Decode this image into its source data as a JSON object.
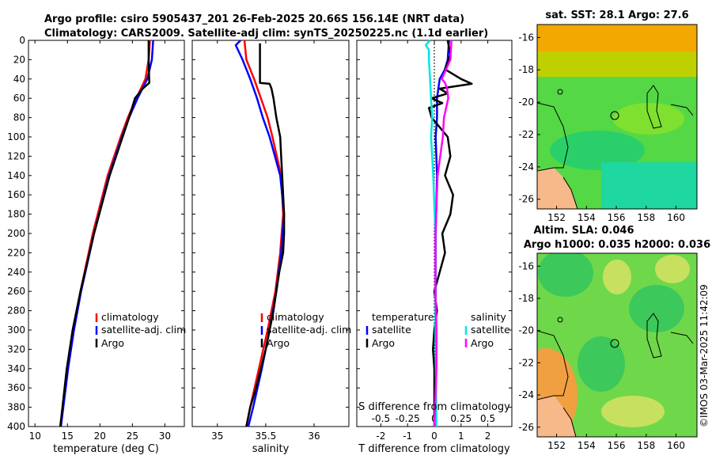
{
  "titles": {
    "line1": "Argo profile: csiro 5905437_201 26-Feb-2025 20.66S 156.14E (NRT data)",
    "line2": "Climatology: CARS2009. Satellite-adj clim: synTS_20250225.nc (1.1d earlier)"
  },
  "stamp": "©IMOS 03-Mar-2025 11:42:09",
  "colors": {
    "climatology": "#ff0000",
    "satellite": "#0000ff",
    "argo": "#000000",
    "sal_satellite": "#00e5e5",
    "sal_argo": "#ff00ff",
    "land": "#f7b98a"
  },
  "chart_data": [
    {
      "type": "line",
      "name": "temperature-profile",
      "xlabel": "temperature (deg C)",
      "ylabel": "",
      "xlim": [
        9,
        33
      ],
      "ylim": [
        400,
        0
      ],
      "xticks": [
        "10",
        "15",
        "20",
        "25",
        "30"
      ],
      "yticks": [
        "0",
        "20",
        "40",
        "60",
        "80",
        "100",
        "120",
        "140",
        "160",
        "180",
        "200",
        "220",
        "240",
        "260",
        "280",
        "300",
        "320",
        "340",
        "360",
        "380",
        "400"
      ],
      "legend": [
        "climatology",
        "satellite-adj. clim",
        "Argo"
      ],
      "series": [
        {
          "name": "climatology",
          "depth": [
            0,
            20,
            40,
            60,
            80,
            100,
            140,
            200,
            260,
            300,
            340,
            400
          ],
          "values": [
            27.7,
            27.5,
            27.0,
            25.6,
            24.3,
            23.2,
            21.2,
            18.9,
            17.0,
            15.9,
            15.0,
            13.9
          ]
        },
        {
          "name": "satellite-adj. clim",
          "depth": [
            0,
            20,
            40,
            60,
            80,
            100,
            140,
            200,
            260,
            300,
            340,
            400
          ],
          "values": [
            28.2,
            28.0,
            27.3,
            25.8,
            24.5,
            23.4,
            21.4,
            19.1,
            17.1,
            16.0,
            15.1,
            14.0
          ]
        },
        {
          "name": "Argo",
          "depth": [
            0,
            20,
            44,
            50,
            60,
            80,
            100,
            140,
            200,
            260,
            300,
            340,
            400
          ],
          "values": [
            27.5,
            27.5,
            27.6,
            26.6,
            25.4,
            24.5,
            23.5,
            21.5,
            19.1,
            17.0,
            15.8,
            14.9,
            13.9
          ]
        }
      ]
    },
    {
      "type": "line",
      "name": "salinity-profile",
      "xlabel": "salinity",
      "xlim": [
        34.74,
        36.36
      ],
      "ylim": [
        400,
        0
      ],
      "xticks": [
        "35",
        "35.5",
        "36"
      ],
      "legend": [
        "climatology",
        "satellite-adj. clim",
        "Argo"
      ],
      "series": [
        {
          "name": "climatology",
          "depth": [
            0,
            20,
            40,
            60,
            80,
            100,
            140,
            180,
            220,
            260,
            300,
            340,
            380,
            400
          ],
          "values": [
            35.28,
            35.3,
            35.38,
            35.45,
            35.52,
            35.57,
            35.66,
            35.68,
            35.65,
            35.6,
            35.52,
            35.43,
            35.34,
            35.3
          ]
        },
        {
          "name": "satellite-adj. clim",
          "depth": [
            0,
            5,
            20,
            40,
            60,
            80,
            100,
            140,
            180,
            220,
            260,
            300,
            340,
            380,
            400
          ],
          "values": [
            35.24,
            35.19,
            35.26,
            35.34,
            35.41,
            35.47,
            35.54,
            35.65,
            35.69,
            35.66,
            35.61,
            35.54,
            35.46,
            35.37,
            35.32
          ]
        },
        {
          "name": "Argo",
          "depth": [
            3,
            44,
            45,
            50,
            60,
            80,
            100,
            120,
            140,
            160,
            180,
            200,
            220,
            240,
            260,
            280,
            300,
            320,
            340,
            360,
            380,
            400
          ],
          "values": [
            35.44,
            35.44,
            35.54,
            35.56,
            35.58,
            35.61,
            35.65,
            35.66,
            35.67,
            35.68,
            35.69,
            35.69,
            35.68,
            35.64,
            35.61,
            35.58,
            35.54,
            35.5,
            35.45,
            35.4,
            35.34,
            35.3
          ]
        }
      ]
    },
    {
      "type": "line",
      "name": "difference-from-climatology",
      "xlabel": "T difference from climatology",
      "xlabel_top": "S difference from climatology",
      "xlim": [
        -2.9,
        2.9
      ],
      "ylim": [
        400,
        0
      ],
      "xticks": [
        "-2",
        "-1",
        "0",
        "1",
        "2"
      ],
      "xticks_top": [
        "-0.5",
        "-0.25",
        "0",
        "0.25",
        "0.5"
      ],
      "legend_temperature": {
        "title": "temperature",
        "items": [
          "satellite",
          "Argo"
        ]
      },
      "legend_salinity": {
        "title": "salinity",
        "items": [
          "satellite",
          "Argo"
        ]
      },
      "series": [
        {
          "name": "temperature satellite",
          "depth": [
            0,
            20,
            30,
            40,
            50,
            60,
            80,
            100,
            140,
            200,
            300,
            400
          ],
          "values": [
            0.55,
            0.5,
            0.4,
            0.2,
            0.15,
            0.1,
            0.1,
            0.05,
            0.1,
            0.05,
            0.05,
            0.05
          ]
        },
        {
          "name": "temperature Argo",
          "depth": [
            0,
            15,
            30,
            40,
            45,
            50,
            55,
            60,
            65,
            70,
            80,
            90,
            100,
            120,
            140,
            160,
            180,
            200,
            220,
            240,
            260,
            280,
            300,
            320,
            340,
            360,
            380,
            400
          ],
          "values": [
            0.5,
            0.6,
            0.4,
            1.0,
            1.4,
            0.2,
            0.5,
            -0.1,
            0.3,
            -0.2,
            -0.1,
            0.2,
            0.5,
            0.6,
            0.4,
            0.7,
            0.6,
            0.3,
            0.4,
            0.2,
            0.0,
            0.1,
            0.0,
            -0.05,
            0.0,
            0.0,
            0.0,
            0.0
          ]
        },
        {
          "name": "salinity satellite",
          "depth": [
            0,
            5,
            10,
            20,
            40,
            60,
            80,
            100,
            140,
            200,
            300,
            400
          ],
          "values": [
            -0.04,
            -0.08,
            -0.05,
            -0.05,
            -0.04,
            -0.03,
            -0.02,
            -0.03,
            -0.01,
            0.01,
            0.01,
            0.02
          ]
        },
        {
          "name": "salinity Argo",
          "depth": [
            0,
            20,
            40,
            44,
            50,
            60,
            80,
            100,
            140,
            200,
            260,
            300,
            340,
            400
          ],
          "values": [
            0.16,
            0.15,
            0.07,
            0.1,
            0.12,
            0.13,
            0.09,
            0.08,
            0.03,
            0.01,
            0.01,
            0.02,
            0.02,
            0.0
          ]
        }
      ]
    },
    {
      "type": "heatmap",
      "name": "sst-map",
      "title": "sat. SST: 28.1 Argo: 27.6",
      "xticks": [
        "152",
        "154",
        "156",
        "158",
        "160"
      ],
      "yticks": [
        "-16",
        "-18",
        "-20",
        "-22",
        "-24",
        "-26"
      ],
      "xlim": [
        150.7,
        161.4
      ],
      "ylim": [
        -26.6,
        -15.2
      ]
    },
    {
      "type": "heatmap",
      "name": "sla-map",
      "title_line1": "Altim. SLA: 0.046",
      "title_line2": "Argo h1000: 0.035 h2000: 0.036",
      "xticks": [
        "152",
        "154",
        "156",
        "158",
        "160"
      ],
      "yticks": [
        "-16",
        "-18",
        "-20",
        "-22",
        "-24",
        "-26"
      ],
      "xlim": [
        150.7,
        161.4
      ],
      "ylim": [
        -26.6,
        -15.2
      ]
    }
  ]
}
